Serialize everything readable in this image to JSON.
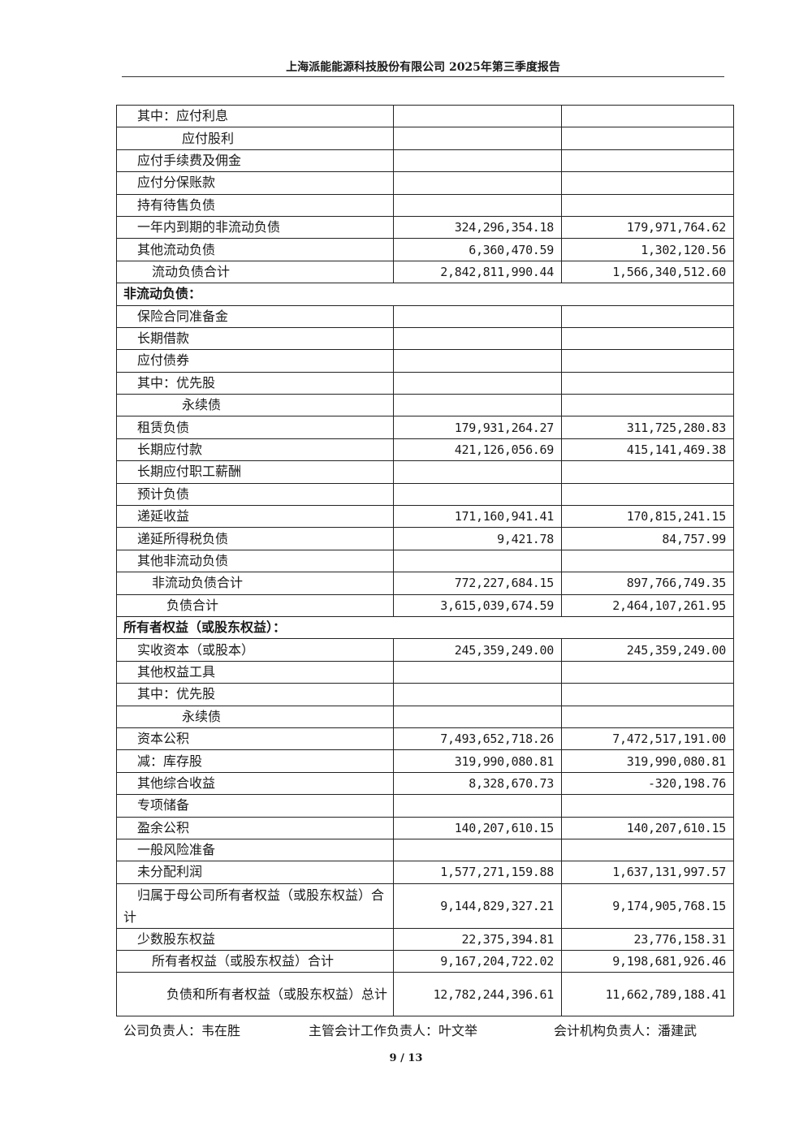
{
  "header": {
    "title": "上海派能能源科技股份有限公司 2025年第三季度报告"
  },
  "rows": [
    {
      "label": "其中：应付利息",
      "kind": "item",
      "current": "",
      "prior": ""
    },
    {
      "label": "应付股利",
      "kind": "sub",
      "current": "",
      "prior": ""
    },
    {
      "label": "应付手续费及佣金",
      "kind": "item",
      "current": "",
      "prior": ""
    },
    {
      "label": "应付分保账款",
      "kind": "item",
      "current": "",
      "prior": ""
    },
    {
      "label": "持有待售负债",
      "kind": "item",
      "current": "",
      "prior": ""
    },
    {
      "label": "一年内到期的非流动负债",
      "kind": "item",
      "current": "324,296,354.18",
      "prior": "179,971,764.62"
    },
    {
      "label": "其他流动负债",
      "kind": "item",
      "current": "6,360,470.59",
      "prior": "1,302,120.56"
    },
    {
      "label": "流动负债合计",
      "kind": "subtotal",
      "current": "2,842,811,990.44",
      "prior": "1,566,340,512.60"
    },
    {
      "label": "非流动负债：",
      "kind": "section",
      "current": "",
      "prior": ""
    },
    {
      "label": "保险合同准备金",
      "kind": "item",
      "current": "",
      "prior": ""
    },
    {
      "label": "长期借款",
      "kind": "item",
      "current": "",
      "prior": ""
    },
    {
      "label": "应付债券",
      "kind": "item",
      "current": "",
      "prior": ""
    },
    {
      "label": "其中：优先股",
      "kind": "item",
      "current": "",
      "prior": ""
    },
    {
      "label": "永续债",
      "kind": "sub",
      "current": "",
      "prior": ""
    },
    {
      "label": "租赁负债",
      "kind": "item",
      "current": "179,931,264.27",
      "prior": "311,725,280.83"
    },
    {
      "label": "长期应付款",
      "kind": "item",
      "current": "421,126,056.69",
      "prior": "415,141,469.38"
    },
    {
      "label": "长期应付职工薪酬",
      "kind": "item",
      "current": "",
      "prior": ""
    },
    {
      "label": "预计负债",
      "kind": "item",
      "current": "",
      "prior": ""
    },
    {
      "label": "递延收益",
      "kind": "item",
      "current": "171,160,941.41",
      "prior": "170,815,241.15"
    },
    {
      "label": "递延所得税负债",
      "kind": "item",
      "current": "9,421.78",
      "prior": "84,757.99"
    },
    {
      "label": "其他非流动负债",
      "kind": "item",
      "current": "",
      "prior": ""
    },
    {
      "label": "非流动负债合计",
      "kind": "subtotal",
      "current": "772,227,684.15",
      "prior": "897,766,749.35"
    },
    {
      "label": "负债合计",
      "kind": "total",
      "current": "3,615,039,674.59",
      "prior": "2,464,107,261.95"
    },
    {
      "label": "所有者权益（或股东权益）：",
      "kind": "section",
      "current": "",
      "prior": ""
    },
    {
      "label": "实收资本（或股本）",
      "kind": "item",
      "current": "245,359,249.00",
      "prior": "245,359,249.00"
    },
    {
      "label": "其他权益工具",
      "kind": "item",
      "current": "",
      "prior": ""
    },
    {
      "label": "其中：优先股",
      "kind": "item",
      "current": "",
      "prior": ""
    },
    {
      "label": "永续债",
      "kind": "sub",
      "current": "",
      "prior": ""
    },
    {
      "label": "资本公积",
      "kind": "item",
      "current": "7,493,652,718.26",
      "prior": "7,472,517,191.00"
    },
    {
      "label": "减：库存股",
      "kind": "item",
      "current": "319,990,080.81",
      "prior": "319,990,080.81"
    },
    {
      "label": "其他综合收益",
      "kind": "item",
      "current": "8,328,670.73",
      "prior": "-320,198.76"
    },
    {
      "label": "专项储备",
      "kind": "item",
      "current": "",
      "prior": ""
    },
    {
      "label": "盈余公积",
      "kind": "item",
      "current": "140,207,610.15",
      "prior": "140,207,610.15"
    },
    {
      "label": "一般风险准备",
      "kind": "item",
      "current": "",
      "prior": ""
    },
    {
      "label": "未分配利润",
      "kind": "item",
      "current": "1,577,271,159.88",
      "prior": "1,637,131,997.57"
    },
    {
      "label": "归属于母公司所有者权益（或股东权益）合计",
      "kind": "itemwrap",
      "current": "9,144,829,327.21",
      "prior": "9,174,905,768.15"
    },
    {
      "label": "少数股东权益",
      "kind": "item",
      "current": "22,375,394.81",
      "prior": "23,776,158.31"
    },
    {
      "label": "所有者权益（或股东权益）合计",
      "kind": "subtotal",
      "current": "9,167,204,722.02",
      "prior": "9,198,681,926.46"
    },
    {
      "label": "负债和所有者权益（或股东权益）总计",
      "kind": "grand",
      "current": "12,782,244,396.61",
      "prior": "11,662,789,188.41"
    }
  ],
  "footer": {
    "company_head": "公司负责人：韦在胜",
    "accounting_head": "主管会计工作负责人：叶文举",
    "accounting_org_head": "会计机构负责人：潘建武"
  },
  "page": {
    "number": "9 / 13"
  }
}
